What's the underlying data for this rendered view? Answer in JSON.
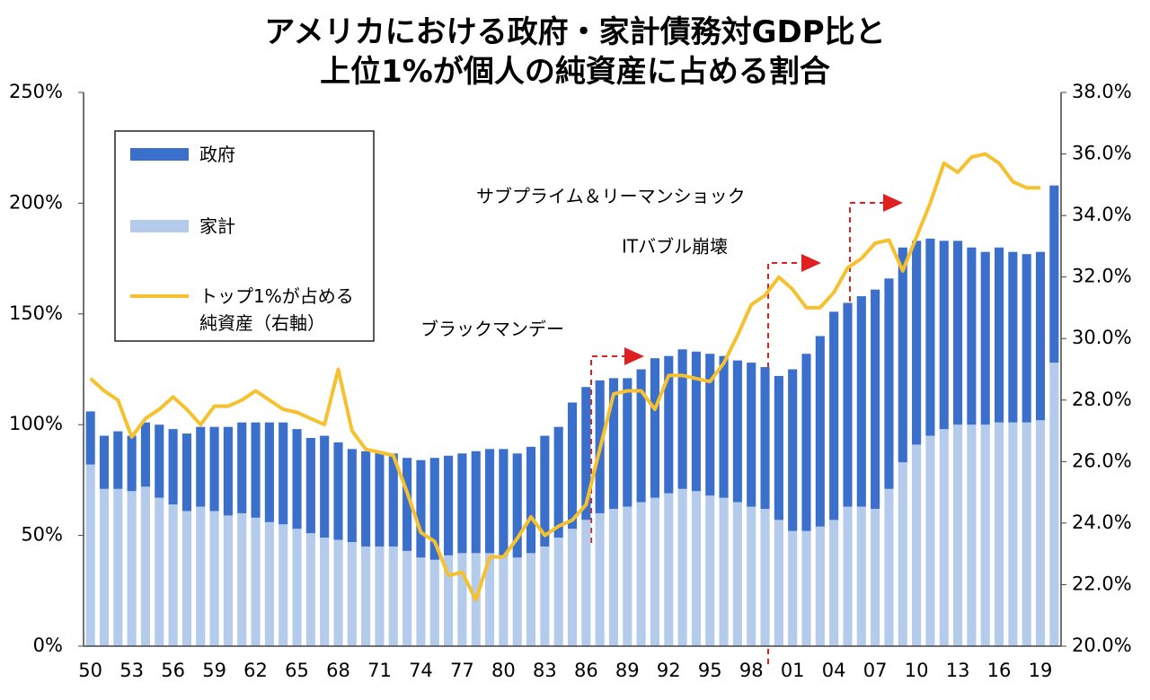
{
  "chart_data": {
    "type": "bar-line",
    "title": "アメリカにおける政府・家計債務対GDP比と\n上位1%が個人の純資産に占める割合",
    "categories": [
      "50",
      null,
      null,
      "53",
      null,
      null,
      "56",
      null,
      null,
      "59",
      null,
      null,
      "62",
      null,
      null,
      "65",
      null,
      null,
      "68",
      null,
      null,
      "71",
      null,
      null,
      "74",
      null,
      null,
      "77",
      null,
      null,
      "80",
      null,
      null,
      "83",
      null,
      null,
      "86",
      null,
      null,
      "89",
      null,
      null,
      "92",
      null,
      null,
      "95",
      null,
      null,
      "98",
      null,
      null,
      "01",
      null,
      null,
      "04",
      null,
      null,
      "07",
      null,
      null,
      "10",
      null,
      null,
      "13",
      null,
      null,
      "16",
      null,
      null,
      "19",
      null
    ],
    "series": [
      {
        "name": "政府",
        "color": "#3a6fcc",
        "stack": true,
        "values": [
          24,
          24,
          26,
          25,
          29,
          33,
          34,
          35,
          36,
          38,
          40,
          41,
          43,
          45,
          46,
          45,
          43,
          46,
          44,
          42,
          43,
          43,
          42,
          42,
          44,
          46,
          45,
          45,
          46,
          47,
          48,
          47,
          48,
          50,
          50,
          57,
          60,
          60,
          59,
          58,
          60,
          63,
          62,
          63,
          63,
          64,
          64,
          64,
          65,
          64,
          65,
          73,
          80,
          86,
          94,
          92,
          95,
          99,
          95,
          97,
          92,
          89,
          85,
          83,
          80,
          78,
          79,
          77,
          76,
          76,
          80
        ]
      },
      {
        "name": "家計",
        "color": "#b4cbec",
        "stack": true,
        "values": [
          82,
          71,
          71,
          70,
          72,
          67,
          64,
          61,
          63,
          61,
          59,
          60,
          58,
          56,
          55,
          53,
          51,
          49,
          48,
          47,
          45,
          45,
          45,
          43,
          40,
          39,
          41,
          42,
          42,
          42,
          41,
          40,
          42,
          45,
          49,
          53,
          57,
          60,
          62,
          63,
          65,
          67,
          69,
          71,
          70,
          68,
          67,
          65,
          63,
          62,
          57,
          52,
          52,
          54,
          57,
          63,
          63,
          62,
          71,
          83,
          91,
          95,
          98,
          100,
          100,
          100,
          101,
          101,
          101,
          102,
          128
        ]
      },
      {
        "name": "トップ1%が占める\n純資産（右軸）",
        "color": "#f5c12e",
        "axis": "y2",
        "values": [
          28.7,
          28.3,
          28.0,
          26.8,
          27.4,
          27.7,
          28.1,
          27.7,
          27.2,
          27.8,
          27.8,
          28.0,
          28.3,
          28.0,
          27.7,
          27.6,
          27.4,
          27.2,
          29.0,
          27.0,
          26.4,
          26.3,
          26.2,
          25.0,
          23.7,
          23.4,
          22.3,
          22.4,
          21.5,
          22.9,
          22.9,
          23.5,
          24.2,
          23.6,
          23.9,
          24.1,
          24.6,
          26.4,
          28.2,
          28.3,
          28.3,
          27.7,
          28.8,
          28.8,
          28.7,
          28.6,
          29.2,
          30.1,
          31.1,
          31.4,
          32.0,
          31.6,
          31.0,
          31.0,
          31.5,
          32.3,
          32.6,
          33.1,
          33.2,
          32.2,
          33.3,
          34.4,
          35.7,
          35.4,
          35.9,
          36.0,
          35.7,
          35.1,
          34.9,
          34.9,
          null
        ]
      }
    ],
    "ylim": [
      0,
      250
    ],
    "yticks": [
      {
        "value": 0,
        "label": "0%"
      },
      {
        "value": 50,
        "label": "50%"
      },
      {
        "value": 100,
        "label": "100%"
      },
      {
        "value": 150,
        "label": "150%"
      },
      {
        "value": 200,
        "label": "200%"
      },
      {
        "value": 250,
        "label": "250%"
      }
    ],
    "y2lim": [
      20,
      38
    ],
    "y2ticks": [
      {
        "value": 20,
        "label": "20.0%"
      },
      {
        "value": 22,
        "label": "22.0%"
      },
      {
        "value": 24,
        "label": "24.0%"
      },
      {
        "value": 26,
        "label": "26.0%"
      },
      {
        "value": 28,
        "label": "28.0%"
      },
      {
        "value": 30,
        "label": "30.0%"
      },
      {
        "value": 32,
        "label": "32.0%"
      },
      {
        "value": 34,
        "label": "34.0%"
      },
      {
        "value": 36,
        "label": "36.0%"
      },
      {
        "value": 38,
        "label": "38.0%"
      }
    ],
    "annotations": [
      "ブラックマンデー",
      "ITバブル崩壊",
      "サブプライム＆リーマンショック"
    ]
  }
}
